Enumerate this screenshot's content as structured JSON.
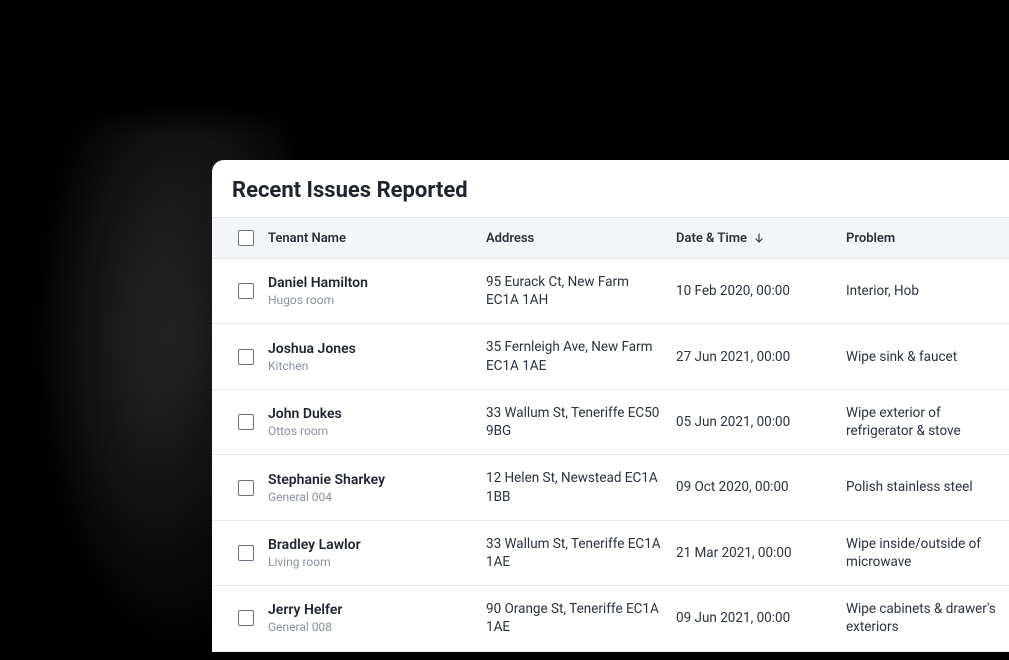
{
  "panel": {
    "title": "Recent Issues Reported"
  },
  "columns": {
    "tenant": "Tenant Name",
    "address": "Address",
    "date": "Date & Time",
    "problem": "Problem",
    "sorted_column": "date",
    "sort_direction": "desc"
  },
  "rows": [
    {
      "tenant": "Daniel Hamilton",
      "subtext": "Hugos room",
      "address": "95 Eurack Ct, New Farm EC1A 1AH",
      "date": "10 Feb 2020, 00:00",
      "problem": "Interior, Hob"
    },
    {
      "tenant": "Joshua Jones",
      "subtext": "Kitchen",
      "address": "35 Fernleigh Ave, New Farm EC1A 1AE",
      "date": "27 Jun 2021, 00:00",
      "problem": "Wipe sink & faucet"
    },
    {
      "tenant": "John Dukes",
      "subtext": "Ottos room",
      "address": "33 Wallum St, Teneriffe EC50 9BG",
      "date": "05 Jun 2021, 00:00",
      "problem": "Wipe exterior of refrigerator & stove"
    },
    {
      "tenant": "Stephanie Sharkey",
      "subtext": "General 004",
      "address": "12 Helen St, Newstead EC1A 1BB",
      "date": "09 Oct 2020, 00:00",
      "problem": "Polish stainless steel"
    },
    {
      "tenant": "Bradley Lawlor",
      "subtext": "Living room",
      "address": "33 Wallum St, Teneriffe EC1A 1AE",
      "date": "21 Mar 2021, 00:00",
      "problem": "Wipe inside/outside of microwave"
    },
    {
      "tenant": "Jerry Helfer",
      "subtext": "General 008",
      "address": "90 Orange St, Teneriffe EC1A 1AE",
      "date": "09 Jun 2021, 00:00",
      "problem": "Wipe cabinets & drawer's exteriors"
    }
  ],
  "colors": {
    "page_bg": "#000000",
    "panel_bg": "#ffffff",
    "header_bg": "#f3f5f8",
    "border": "#e3e6eb",
    "text_primary": "#1f2430",
    "text_secondary": "#8a90a0"
  }
}
